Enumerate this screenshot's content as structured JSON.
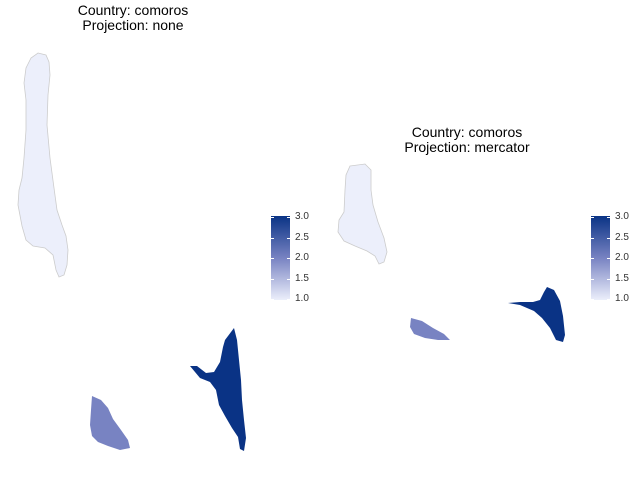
{
  "panels": [
    {
      "title_country": "Country: comoros",
      "title_projection": "Projection: none"
    },
    {
      "title_country": "Country: comoros",
      "title_projection": "Projection: mercator"
    }
  ],
  "regions": [
    {
      "name": "grande-comore",
      "value": 1
    },
    {
      "name": "moheli",
      "value": 2
    },
    {
      "name": "anjouan",
      "value": 3
    }
  ],
  "legend": {
    "min": 1,
    "max": 3,
    "tick_values": [
      3.0,
      2.5,
      2.0,
      1.5,
      1.0
    ],
    "labels": [
      "3.0",
      "2.5",
      "2.0",
      "1.5",
      "1.0"
    ]
  },
  "colors": {
    "low": "#eceffb",
    "mid": "#7883c2",
    "high": "#0a3385",
    "border": "#cccccc"
  }
}
